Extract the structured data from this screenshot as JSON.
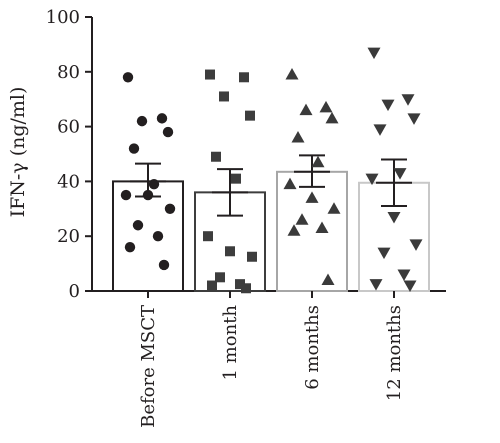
{
  "chart_data": {
    "type": "bar",
    "ylabel": "IFN-γ (ng/ml)",
    "ylim": [
      0,
      100
    ],
    "yticks": [
      0,
      20,
      40,
      60,
      80,
      100
    ],
    "grid": false,
    "categories": [
      "Before MSCT",
      "1 month",
      "6 months",
      "12 months"
    ],
    "bars": [
      {
        "category": "Before MSCT",
        "mean": 40,
        "sem_low": 34.5,
        "sem_high": 46.5,
        "marker": "circle",
        "color": "#231f20",
        "points": [
          78,
          63,
          62,
          58,
          52,
          39,
          35,
          35,
          30,
          24,
          20,
          16,
          9.5
        ]
      },
      {
        "category": "1 month",
        "mean": 36,
        "sem_low": 27.5,
        "sem_high": 44.5,
        "marker": "square",
        "color": "#3d3d3d",
        "points": [
          79,
          78,
          71,
          64,
          49,
          41,
          20,
          14.5,
          12.5,
          5,
          2.5,
          2,
          1
        ]
      },
      {
        "category": "6 months",
        "mean": 43.5,
        "sem_low": 38,
        "sem_high": 49.5,
        "marker": "triangle-up",
        "color": "#3a3a3a",
        "points": [
          79,
          67,
          66,
          63,
          56,
          47,
          39,
          34,
          30,
          26,
          23,
          22,
          4
        ]
      },
      {
        "category": "12 months",
        "mean": 39.5,
        "sem_low": 31,
        "sem_high": 48,
        "marker": "triangle-down",
        "color": "#3a3a3a",
        "points": [
          87,
          70,
          68,
          63,
          59,
          43,
          41,
          27,
          17,
          14,
          6,
          2.5,
          2
        ]
      }
    ],
    "colors": {
      "axis": "#231f20",
      "bar_fill": "#ffffff",
      "bar_edges": [
        "#231f20",
        "#3d3d3d",
        "#a6a6a6",
        "#c8c8c8"
      ]
    }
  }
}
